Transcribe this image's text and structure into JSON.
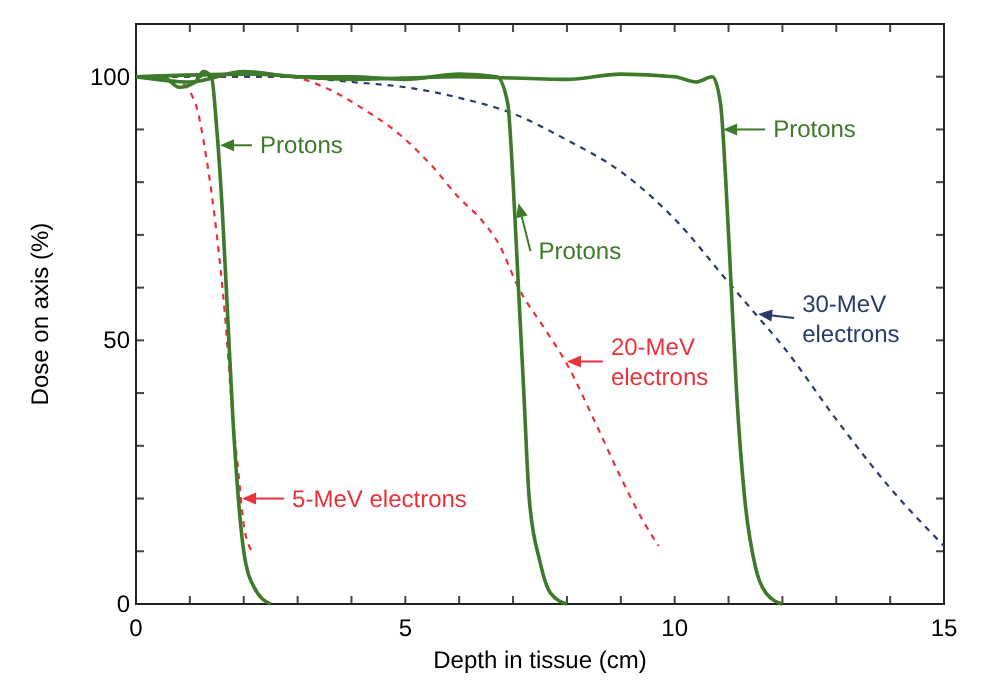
{
  "chart_data": {
    "type": "line",
    "xlabel": "Depth in tissue (cm)",
    "ylabel": "Dose on axis (%)",
    "xlim": [
      0,
      15
    ],
    "ylim": [
      0,
      110
    ],
    "xticks": [
      0,
      {
        "value": 1,
        "label": null
      },
      {
        "value": 2,
        "label": null
      },
      {
        "value": 3,
        "label": null
      },
      {
        "value": 4,
        "label": null
      },
      5,
      {
        "value": 6,
        "label": null
      },
      {
        "value": 7,
        "label": null
      },
      {
        "value": 8,
        "label": null
      },
      {
        "value": 9,
        "label": null
      },
      10,
      {
        "value": 11,
        "label": null
      },
      {
        "value": 12,
        "label": null
      },
      {
        "value": 13,
        "label": null
      },
      {
        "value": 14,
        "label": null
      },
      15
    ],
    "yticks": [
      0,
      {
        "value": 10,
        "label": null
      },
      {
        "value": 20,
        "label": null
      },
      {
        "value": 30,
        "label": null
      },
      {
        "value": 40,
        "label": null
      },
      50,
      {
        "value": 60,
        "label": null
      },
      {
        "value": 70,
        "label": null
      },
      {
        "value": 80,
        "label": null
      },
      {
        "value": 90,
        "label": null
      },
      100
    ],
    "grid": false,
    "marker": "none",
    "series": [
      {
        "color": "#e8323c",
        "line_style": "dashed",
        "x": [
          0,
          0.8,
          1.1,
          1.3,
          1.5,
          1.65,
          1.8,
          1.9,
          2.0,
          2.1,
          2.2
        ],
        "values": [
          100,
          99,
          95,
          85,
          70,
          55,
          35,
          25,
          15,
          11,
          9.5
        ]
      },
      {
        "color": "#e8323c",
        "line_style": "dashed",
        "x": [
          0,
          2.8,
          3.5,
          4.2,
          4.9,
          5.5,
          6.0,
          6.4,
          6.75,
          7.1,
          7.6,
          8.0,
          8.5,
          9.0,
          9.4,
          9.7
        ],
        "values": [
          100,
          100,
          98,
          94,
          89,
          83,
          77,
          73,
          68,
          60,
          52,
          45.5,
          35,
          24,
          16,
          11
        ]
      },
      {
        "color": "#2a3a6a",
        "line_style": "dashed",
        "x": [
          0,
          2.8,
          4,
          5,
          6,
          7,
          8,
          9,
          10,
          11,
          11.5,
          12,
          13,
          14,
          15
        ],
        "values": [
          100,
          100,
          99,
          98,
          96,
          93,
          88,
          82,
          73,
          61,
          55,
          49,
          35,
          22,
          11
        ]
      },
      {
        "color": "#3d7a2a",
        "line_style": "solid",
        "x": [
          0,
          0.5,
          0.8,
          1.1,
          1.25,
          1.4,
          1.5,
          1.6,
          1.7,
          1.8,
          1.9,
          2.0,
          2.2,
          2.5
        ],
        "values": [
          100,
          100,
          98,
          99,
          101,
          100,
          90,
          75,
          55,
          35,
          20,
          10,
          3,
          0
        ]
      },
      {
        "color": "#3d7a2a",
        "line_style": "solid",
        "x": [
          0,
          1,
          2,
          3,
          4,
          5,
          6,
          6.7,
          6.9,
          7.0,
          7.1,
          7.2,
          7.3,
          7.5,
          7.7,
          8
        ],
        "values": [
          100,
          99,
          101,
          100,
          100,
          99.5,
          100.5,
          100,
          95,
          80,
          60,
          40,
          20,
          8,
          2,
          0
        ]
      },
      {
        "color": "#3d7a2a",
        "line_style": "solid",
        "x": [
          0,
          2,
          4,
          6,
          8,
          9,
          10,
          10.4,
          10.7,
          10.85,
          10.95,
          11.05,
          11.15,
          11.3,
          11.5,
          11.7,
          12
        ],
        "values": [
          100,
          100.5,
          99.5,
          100,
          99.5,
          100.5,
          100,
          99,
          100,
          95,
          80,
          60,
          40,
          20,
          7,
          2,
          0
        ]
      }
    ],
    "annotations": [
      {
        "text": "Protons",
        "x": 1.56,
        "y": 87
      },
      {
        "text": "Protons",
        "x": 7.1,
        "y": 76
      },
      {
        "text": "Protons",
        "x": 10.9,
        "y": 90
      },
      {
        "text": "5-MeV electrons",
        "x": 1.97,
        "y": 20
      },
      {
        "text": "20-MeV electrons",
        "x": 8.0,
        "y": 46
      },
      {
        "text": "30-MeV electrons",
        "x": 11.55,
        "y": 55
      }
    ]
  }
}
